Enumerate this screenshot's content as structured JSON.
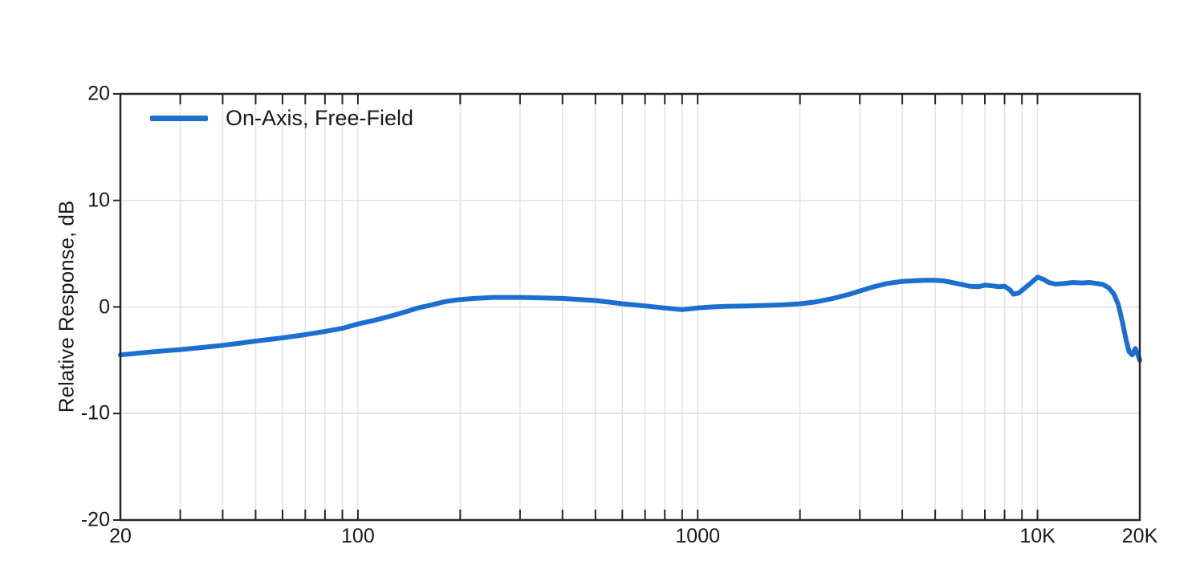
{
  "chart": {
    "ylabel": "Relative Response, dB",
    "legend": {
      "label": "On-Axis, Free-Field"
    },
    "colors": {
      "curve": "#1b6fd1",
      "grid": "#e2e2e2",
      "axis": "#262626",
      "text": "#1a1a1a"
    }
  },
  "chart_data": {
    "type": "line",
    "title": "",
    "xlabel": "",
    "ylabel": "Relative Response, dB",
    "x_scale": "log",
    "xlim": [
      20,
      20000
    ],
    "ylim": [
      -20,
      20
    ],
    "grid": true,
    "legend_position": "top-left",
    "y_ticks": [
      20,
      10,
      0,
      -10,
      -20
    ],
    "x_major_ticks": [
      {
        "value": 20,
        "label": "20"
      },
      {
        "value": 100,
        "label": "100"
      },
      {
        "value": 1000,
        "label": "1000"
      },
      {
        "value": 10000,
        "label": "10K"
      },
      {
        "value": 20000,
        "label": "20K"
      }
    ],
    "series": [
      {
        "name": "On-Axis, Free-Field",
        "color": "#1b6fd1",
        "x": [
          20,
          25,
          30,
          35,
          40,
          45,
          50,
          60,
          70,
          80,
          90,
          100,
          110,
          120,
          130,
          140,
          150,
          160,
          180,
          200,
          220,
          250,
          300,
          350,
          400,
          450,
          500,
          550,
          600,
          700,
          800,
          900,
          1000,
          1100,
          1200,
          1400,
          1600,
          1800,
          2000,
          2200,
          2500,
          2800,
          3000,
          3300,
          3600,
          4000,
          4300,
          4600,
          5000,
          5300,
          5600,
          6000,
          6300,
          6700,
          7000,
          7300,
          7700,
          8000,
          8300,
          8500,
          8800,
          9200,
          9600,
          10000,
          10400,
          10800,
          11300,
          12000,
          12700,
          13500,
          14200,
          15000,
          15600,
          16200,
          16800,
          17300,
          17800,
          18200,
          18600,
          19000,
          19400,
          19700,
          20000
        ],
        "y": [
          -4.5,
          -4.2,
          -4.0,
          -3.8,
          -3.6,
          -3.4,
          -3.2,
          -2.9,
          -2.6,
          -2.3,
          -2.0,
          -1.6,
          -1.3,
          -1.0,
          -0.7,
          -0.4,
          -0.1,
          0.1,
          0.5,
          0.7,
          0.8,
          0.9,
          0.9,
          0.85,
          0.8,
          0.7,
          0.6,
          0.45,
          0.3,
          0.1,
          -0.1,
          -0.25,
          -0.1,
          0.0,
          0.05,
          0.1,
          0.15,
          0.2,
          0.3,
          0.45,
          0.8,
          1.2,
          1.5,
          1.9,
          2.2,
          2.4,
          2.45,
          2.5,
          2.5,
          2.45,
          2.3,
          2.1,
          1.95,
          1.9,
          2.05,
          2.0,
          1.9,
          1.95,
          1.6,
          1.2,
          1.3,
          1.8,
          2.3,
          2.8,
          2.6,
          2.3,
          2.15,
          2.2,
          2.3,
          2.25,
          2.3,
          2.2,
          2.1,
          1.8,
          1.2,
          0.2,
          -1.5,
          -3.0,
          -4.2,
          -4.5,
          -3.9,
          -4.4,
          -5.0
        ]
      }
    ]
  }
}
